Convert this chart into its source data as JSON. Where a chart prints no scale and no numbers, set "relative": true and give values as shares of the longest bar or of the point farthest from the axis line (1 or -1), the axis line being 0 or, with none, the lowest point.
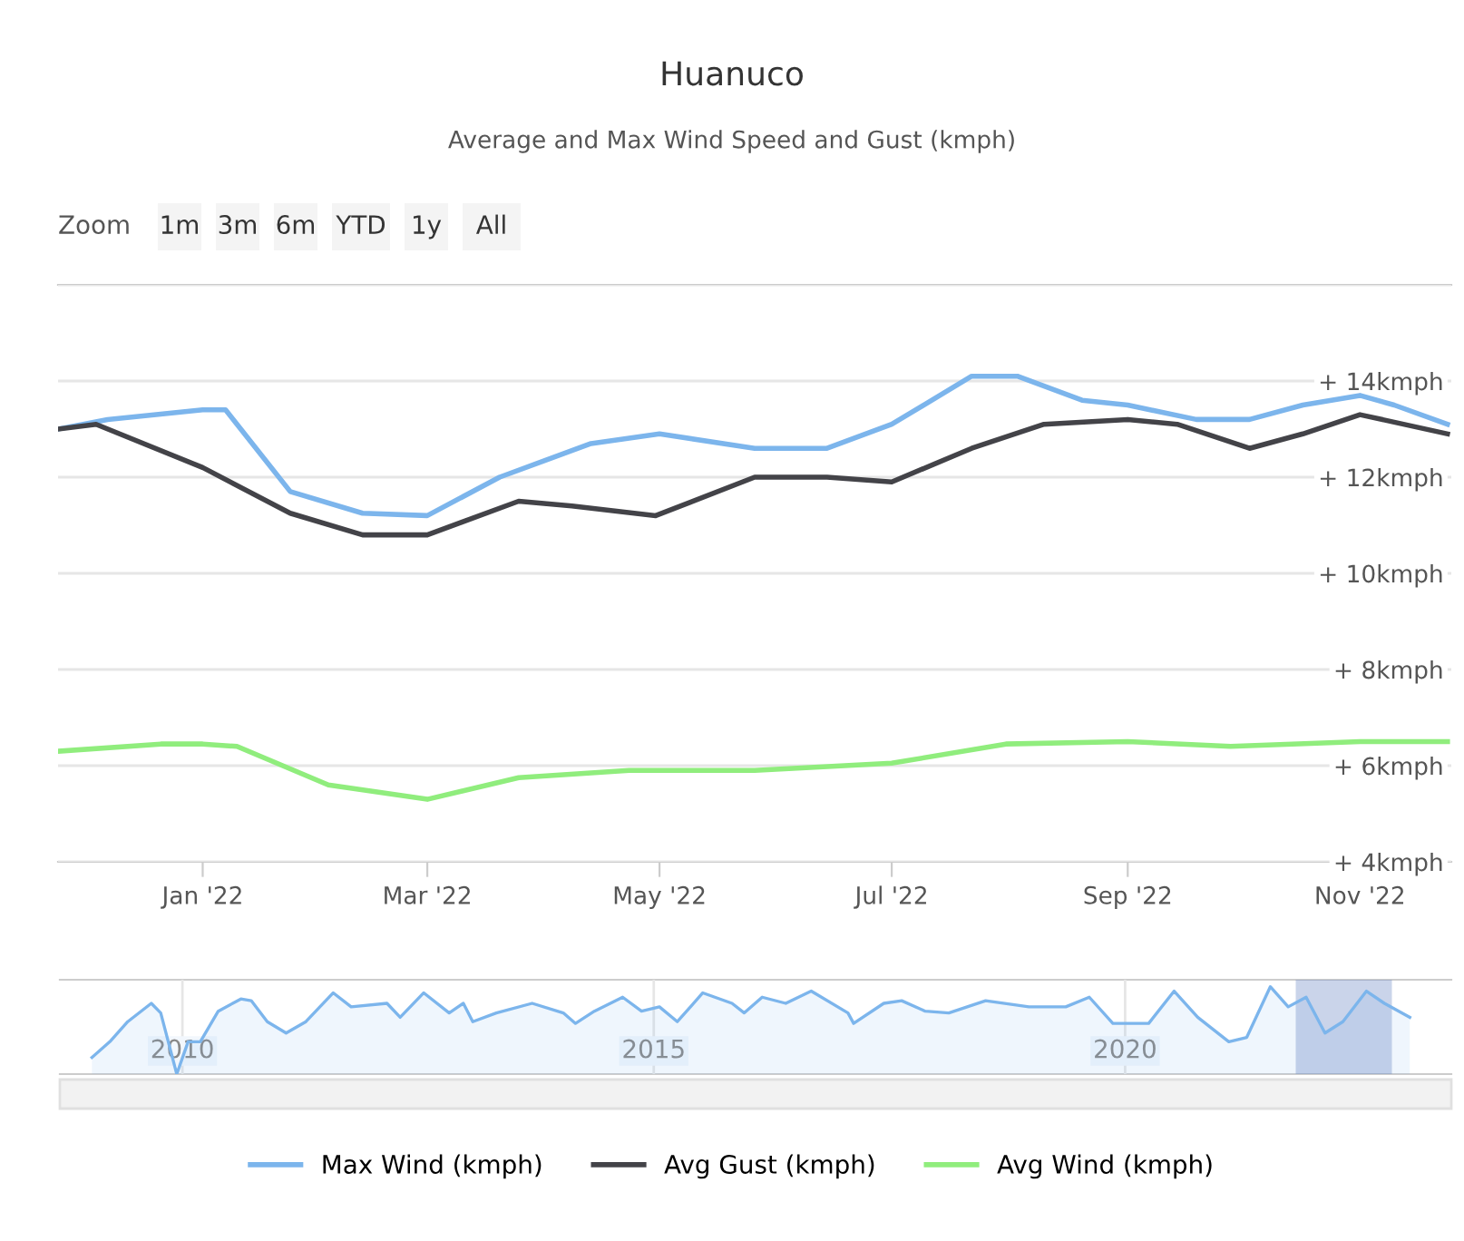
{
  "chart_data": [
    {
      "type": "line",
      "title": "Huanuco",
      "subtitle": "Average and Max Wind Speed and Gust (kmph)",
      "annotations": [
        "Zoom",
        "1m",
        "3m",
        "6m",
        "YTD",
        "1y",
        "All"
      ],
      "xlim": [
        "2021-11-24",
        "2022-11-25"
      ],
      "xticks": [
        {
          "value": "2022-01-01",
          "label": "Jan '22"
        },
        {
          "value": "2022-03-01",
          "label": "Mar '22"
        },
        {
          "value": "2022-05-01",
          "label": "May '22"
        },
        {
          "value": "2022-07-01",
          "label": "Jul '22"
        },
        {
          "value": "2022-09-01",
          "label": "Sep '22"
        },
        {
          "value": "2022-11-01",
          "label": "Nov '22"
        }
      ],
      "ylim": [
        4,
        16
      ],
      "yticks": [
        {
          "value": 4,
          "label": "+ 4kmph"
        },
        {
          "value": 6,
          "label": "+ 6kmph"
        },
        {
          "value": 8,
          "label": "+ 8kmph"
        },
        {
          "value": 10,
          "label": "+ 10kmph"
        },
        {
          "value": 12,
          "label": "+ 12kmph"
        },
        {
          "value": 14,
          "label": "+ 14kmph"
        },
        {
          "value": 16,
          "label": null
        }
      ],
      "grid": "y",
      "legend": "bottom",
      "marker": "none",
      "line_style": "solid",
      "series": [
        {
          "name": "Max Wind (kmph)",
          "color": "#7cb5ec",
          "x": [
            "2021-11-24",
            "2021-12-07",
            "2022-01-01",
            "2022-01-07",
            "2022-01-24",
            "2022-02-12",
            "2022-03-01",
            "2022-03-20",
            "2022-04-13",
            "2022-05-01",
            "2022-05-26",
            "2022-06-14",
            "2022-07-01",
            "2022-07-22",
            "2022-08-03",
            "2022-08-20",
            "2022-09-01",
            "2022-09-19",
            "2022-10-03",
            "2022-10-17",
            "2022-11-01",
            "2022-11-10",
            "2022-11-24"
          ],
          "values": [
            13.0,
            13.2,
            13.4,
            13.4,
            11.7,
            11.25,
            11.2,
            12.0,
            12.7,
            12.9,
            12.6,
            12.6,
            13.1,
            14.1,
            14.1,
            13.6,
            13.5,
            13.2,
            13.2,
            13.5,
            13.7,
            13.5,
            13.1
          ]
        },
        {
          "name": "Avg Gust (kmph)",
          "color": "#434348",
          "x": [
            "2021-11-24",
            "2021-12-04",
            "2022-01-01",
            "2022-01-24",
            "2022-02-12",
            "2022-03-01",
            "2022-03-25",
            "2022-04-08",
            "2022-04-30",
            "2022-05-26",
            "2022-06-14",
            "2022-07-01",
            "2022-07-22",
            "2022-08-10",
            "2022-09-01",
            "2022-09-14",
            "2022-10-03",
            "2022-10-17",
            "2022-11-01",
            "2022-11-24"
          ],
          "values": [
            13.0,
            13.1,
            12.2,
            11.25,
            10.8,
            10.8,
            11.5,
            11.4,
            11.2,
            12.0,
            12.0,
            11.9,
            12.6,
            13.1,
            13.2,
            13.1,
            12.6,
            12.9,
            13.3,
            12.9
          ]
        },
        {
          "name": "Avg Wind (kmph)",
          "color": "#90ed7d",
          "x": [
            "2021-11-24",
            "2021-12-21",
            "2022-01-01",
            "2022-01-10",
            "2022-02-03",
            "2022-03-01",
            "2022-03-25",
            "2022-04-23",
            "2022-05-26",
            "2022-07-01",
            "2022-07-31",
            "2022-09-01",
            "2022-09-28",
            "2022-11-01",
            "2022-11-24"
          ],
          "values": [
            6.3,
            6.45,
            6.45,
            6.4,
            5.6,
            5.3,
            5.75,
            5.9,
            5.9,
            6.05,
            6.45,
            6.5,
            6.4,
            6.5,
            6.5
          ]
        }
      ]
    },
    {
      "type": "area",
      "relative": true,
      "xlim": [
        2008.7,
        2023.46
      ],
      "xticks": [
        2010,
        2015,
        2020
      ],
      "grid": "x",
      "tick_labels": "x",
      "bands": [
        {
          "axis": "x",
          "from": 2021.81,
          "to": 2022.83,
          "color": "#6685c2"
        }
      ],
      "series": [
        {
          "color": "#7cb5ec",
          "x": [
            2009.04,
            2009.23,
            2009.42,
            2009.67,
            2009.77,
            2009.94,
            2010.06,
            2010.19,
            2010.38,
            2010.62,
            2010.73,
            2010.9,
            2011.1,
            2011.31,
            2011.6,
            2011.79,
            2012.17,
            2012.31,
            2012.56,
            2012.83,
            2012.98,
            2013.08,
            2013.33,
            2013.71,
            2014.04,
            2014.17,
            2014.37,
            2014.67,
            2014.87,
            2015.06,
            2015.25,
            2015.52,
            2015.83,
            2015.96,
            2016.15,
            2016.4,
            2016.67,
            2017.06,
            2017.12,
            2017.44,
            2017.63,
            2017.88,
            2018.13,
            2018.52,
            2018.98,
            2019.37,
            2019.62,
            2019.87,
            2020.25,
            2020.52,
            2020.77,
            2021.1,
            2021.29,
            2021.54,
            2021.73,
            2021.92,
            2022.12,
            2022.31,
            2022.56,
            2022.75,
            2023.02
          ],
          "values": [
            0.19,
            0.37,
            0.6,
            0.81,
            0.7,
            0,
            0.37,
            0.37,
            0.72,
            0.86,
            0.84,
            0.6,
            0.47,
            0.6,
            0.93,
            0.77,
            0.81,
            0.65,
            0.93,
            0.7,
            0.81,
            0.6,
            0.7,
            0.81,
            0.7,
            0.58,
            0.72,
            0.88,
            0.72,
            0.77,
            0.6,
            0.93,
            0.81,
            0.7,
            0.88,
            0.81,
            0.95,
            0.7,
            0.58,
            0.81,
            0.84,
            0.72,
            0.7,
            0.84,
            0.77,
            0.77,
            0.88,
            0.58,
            0.58,
            0.95,
            0.65,
            0.37,
            0.42,
            1,
            0.77,
            0.88,
            0.47,
            0.6,
            0.95,
            0.81,
            0.65
          ]
        }
      ]
    }
  ]
}
